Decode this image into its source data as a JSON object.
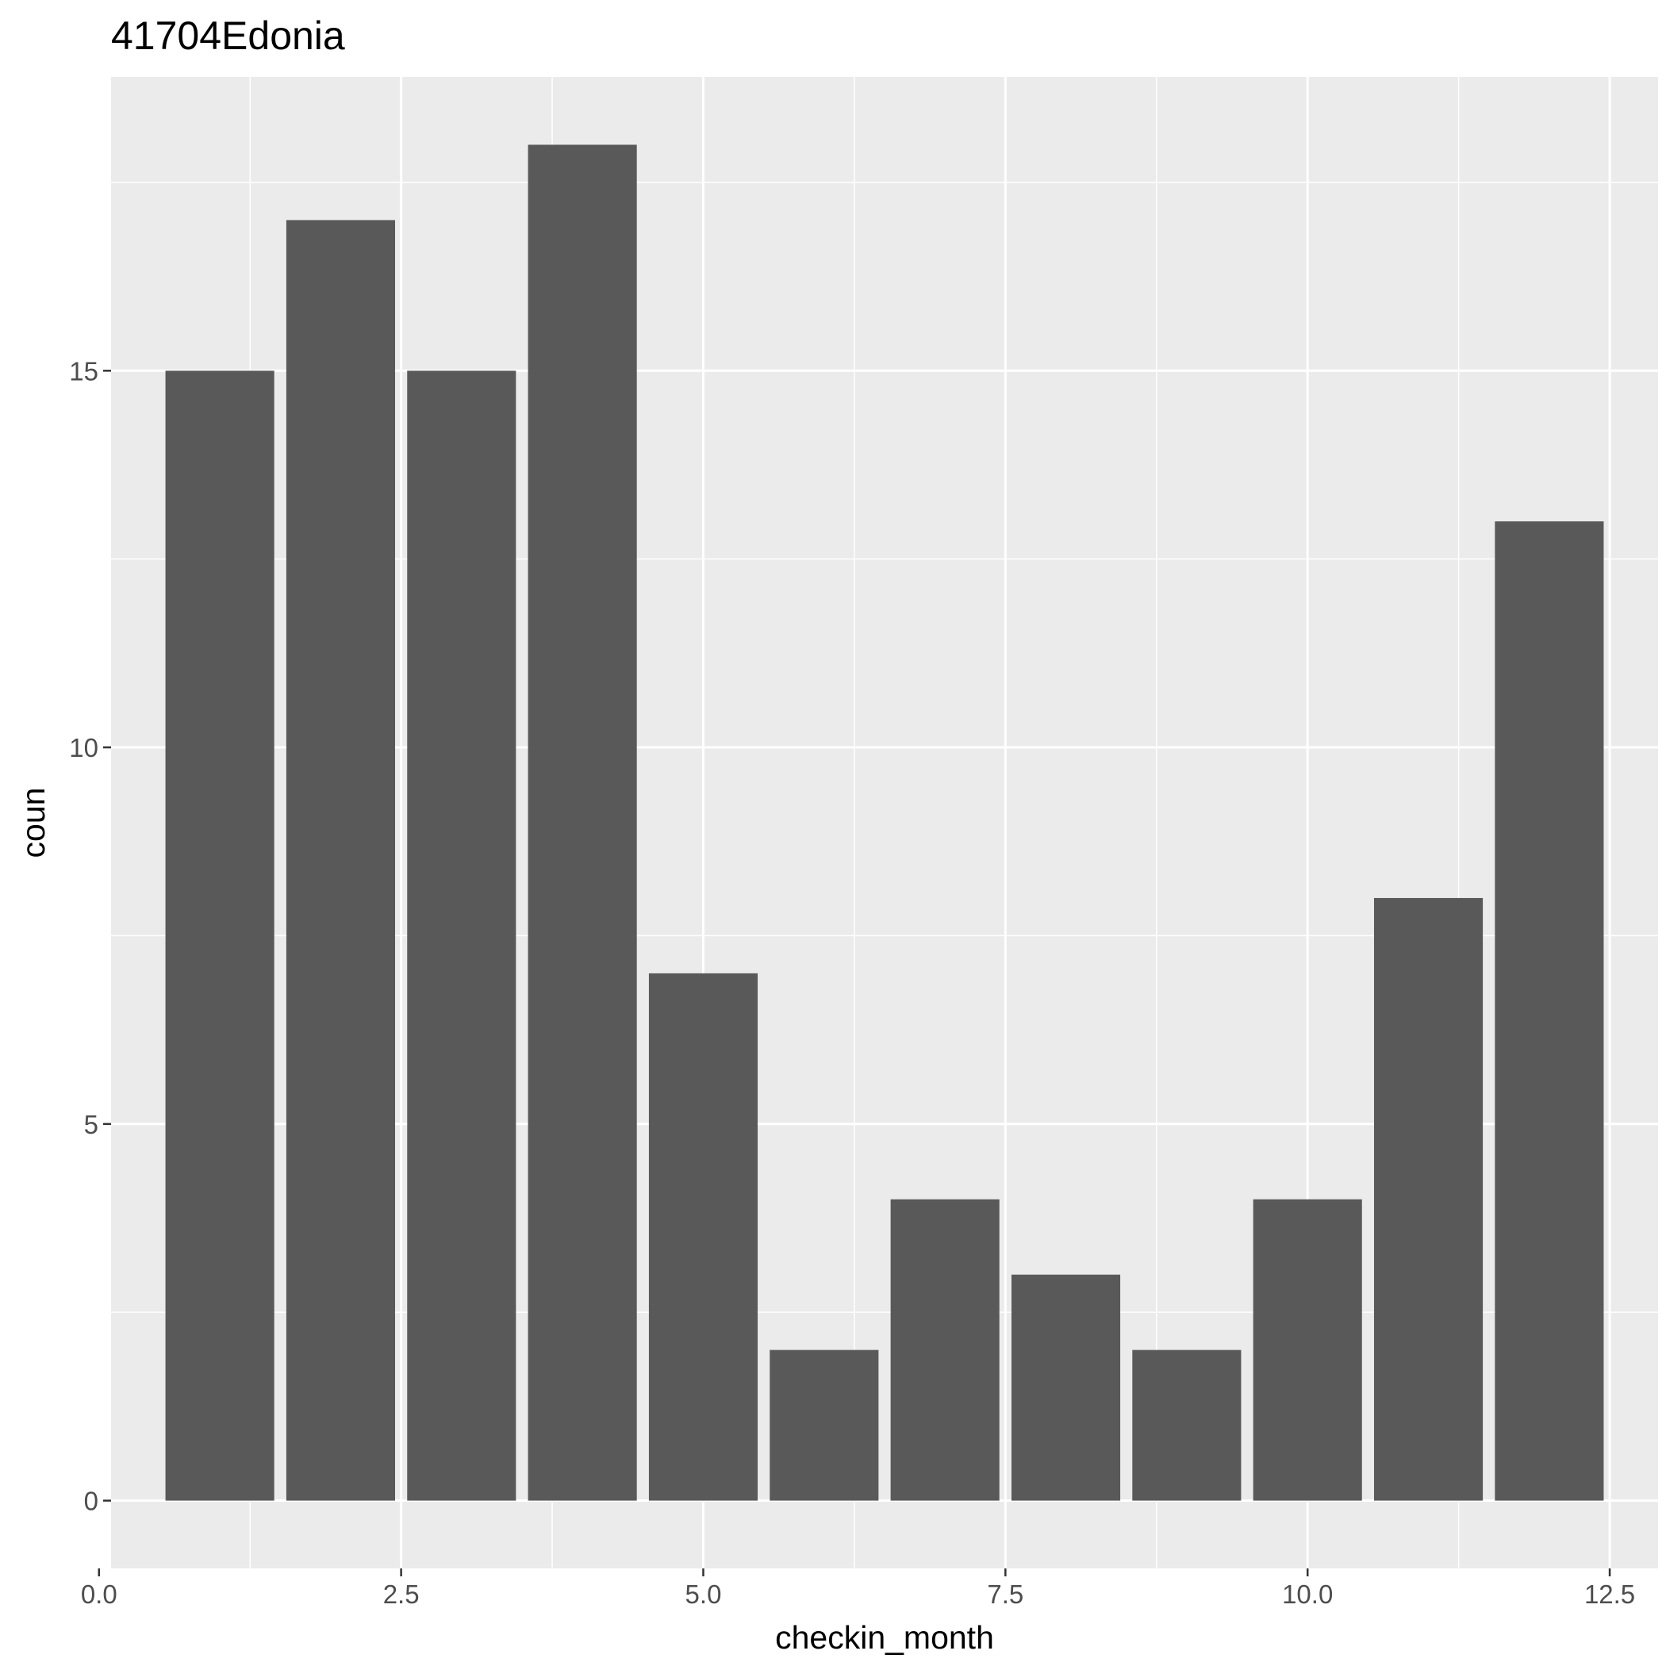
{
  "chart_data": {
    "type": "bar",
    "title": "41704Edonia",
    "xlabel": "checkin_month",
    "ylabel": "coun",
    "x": [
      1,
      2,
      3,
      4,
      5,
      6,
      7,
      8,
      9,
      10,
      11,
      12
    ],
    "values": [
      15,
      17,
      15,
      18,
      7,
      2,
      4,
      3,
      2,
      4,
      8,
      13
    ],
    "xlim": [
      0.1,
      12.9
    ],
    "ylim": [
      -0.9,
      18.9
    ],
    "xticks": [
      0,
      2.5,
      5,
      7.5,
      10,
      12.5
    ],
    "xtick_labels": [
      "0.0",
      "2.5",
      "5.0",
      "7.5",
      "10.0",
      "12.5"
    ],
    "yticks": [
      0,
      5,
      10,
      15
    ],
    "ytick_labels": [
      "0",
      "5",
      "10",
      "15"
    ],
    "grid": true,
    "colors": {
      "panel": "#EBEBEB",
      "grid": "#FFFFFF",
      "bar": "#595959",
      "tick_text": "#4D4D4D"
    }
  }
}
